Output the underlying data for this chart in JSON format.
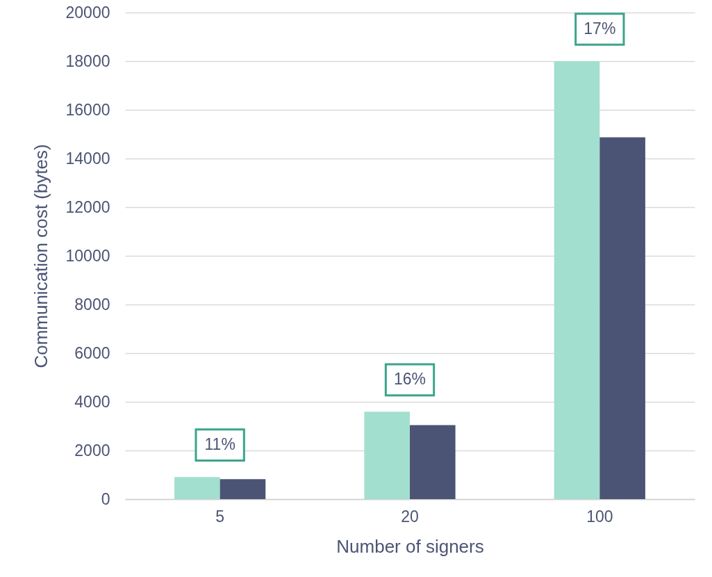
{
  "chart_data": {
    "type": "bar",
    "xlabel": "Number of signers",
    "ylabel": "Communication cost (bytes)",
    "categories": [
      "5",
      "20",
      "100"
    ],
    "series": [
      {
        "color": "#a2dfcf",
        "values": [
          910,
          3590,
          18000
        ]
      },
      {
        "color": "#4b5474",
        "values": [
          820,
          3040,
          14870
        ]
      }
    ],
    "ylim": [
      0,
      20000
    ],
    "yticks": [
      0,
      2000,
      4000,
      6000,
      8000,
      10000,
      12000,
      14000,
      16000,
      18000,
      20000
    ],
    "grid": "y",
    "annotations": [
      "11%",
      "16%",
      "17%"
    ]
  }
}
